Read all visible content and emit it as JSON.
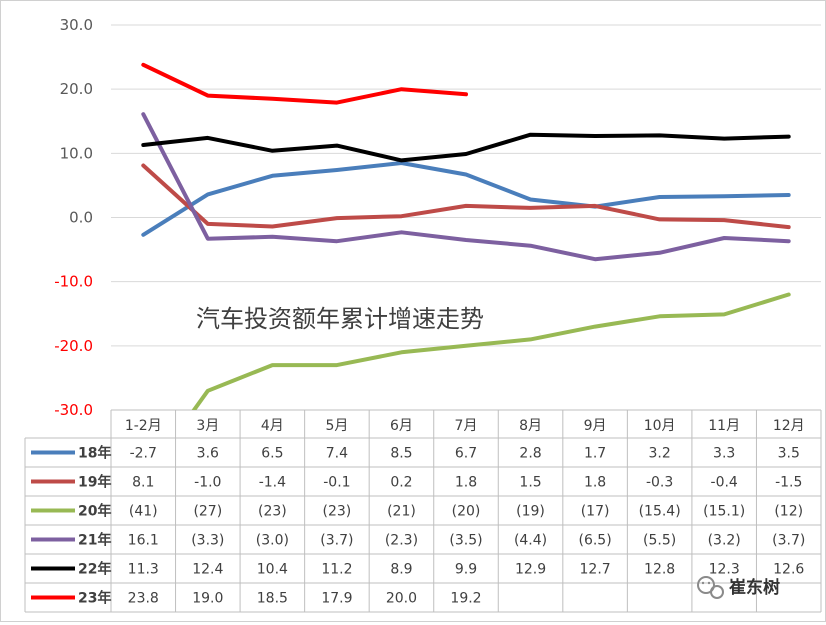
{
  "chart_data": {
    "type": "line",
    "title": "汽车投资额年累计增速走势",
    "categories": [
      "1-2月",
      "3月",
      "4月",
      "5月",
      "6月",
      "7月",
      "8月",
      "9月",
      "10月",
      "11月",
      "12月"
    ],
    "ylim": [
      -30,
      30
    ],
    "yticks": [
      "30.0",
      "20.0",
      "10.0",
      "0.0",
      "-10.0",
      "-20.0",
      "-30.0"
    ],
    "grid": true,
    "legend": "data-table-left",
    "series": [
      {
        "name": "18年",
        "color": "#4a7ebb",
        "values": [
          -2.7,
          3.6,
          6.5,
          7.4,
          8.5,
          6.7,
          2.8,
          1.7,
          3.2,
          3.3,
          3.5
        ],
        "labels": [
          "-2.7",
          "3.6",
          "6.5",
          "7.4",
          "8.5",
          "6.7",
          "2.8",
          "1.7",
          "3.2",
          "3.3",
          "3.5"
        ]
      },
      {
        "name": "19年",
        "color": "#be4b48",
        "values": [
          8.1,
          -1.0,
          -1.4,
          -0.1,
          0.2,
          1.8,
          1.5,
          1.8,
          -0.3,
          -0.4,
          -1.5
        ],
        "labels": [
          "8.1",
          "-1.0",
          "-1.4",
          "-0.1",
          "0.2",
          "1.8",
          "1.5",
          "1.8",
          "-0.3",
          "-0.4",
          "-1.5"
        ]
      },
      {
        "name": "20年",
        "color": "#98b954",
        "values": [
          -41,
          -27,
          -23,
          -23,
          -21,
          -20,
          -19,
          -17,
          -15.4,
          -15.1,
          -12
        ],
        "labels": [
          "(41)",
          "(27)",
          "(23)",
          "(23)",
          "(21)",
          "(20)",
          "(19)",
          "(17)",
          "(15.4)",
          "(15.1)",
          "(12)"
        ]
      },
      {
        "name": "21年",
        "color": "#7d60a0",
        "values": [
          16.1,
          -3.3,
          -3.0,
          -3.7,
          -2.3,
          -3.5,
          -4.4,
          -6.5,
          -5.5,
          -3.2,
          -3.7
        ],
        "labels": [
          "16.1",
          "(3.3)",
          "(3.0)",
          "(3.7)",
          "(2.3)",
          "(3.5)",
          "(4.4)",
          "(6.5)",
          "(5.5)",
          "(3.2)",
          "(3.7)"
        ]
      },
      {
        "name": "22年",
        "color": "#000000",
        "values": [
          11.3,
          12.4,
          10.4,
          11.2,
          8.9,
          9.9,
          12.9,
          12.7,
          12.8,
          12.3,
          12.6
        ],
        "labels": [
          "11.3",
          "12.4",
          "10.4",
          "11.2",
          "8.9",
          "9.9",
          "12.9",
          "12.7",
          "12.8",
          "12.3",
          "12.6"
        ]
      },
      {
        "name": "23年",
        "color": "#ff0000",
        "values": [
          23.8,
          19.0,
          18.5,
          17.9,
          20.0,
          19.2,
          null,
          null,
          null,
          null,
          null
        ],
        "labels": [
          "23.8",
          "19.0",
          "18.5",
          "17.9",
          "20.0",
          "19.2",
          "",
          "",
          "",
          "",
          ""
        ]
      }
    ]
  },
  "watermark": {
    "text": "崔东树",
    "icon": "wechat-icon"
  }
}
